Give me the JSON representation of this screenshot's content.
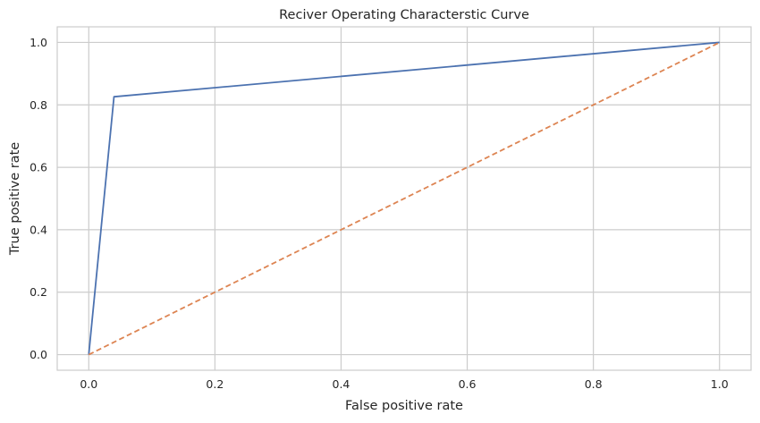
{
  "chart_data": {
    "type": "line",
    "title": "Reciver Operating Characterstic Curve",
    "xlabel": "False positive rate",
    "ylabel": "True positive rate",
    "xlim": [
      -0.05,
      1.05
    ],
    "ylim": [
      -0.05,
      1.05
    ],
    "xticks": [
      0.0,
      0.2,
      0.4,
      0.6,
      0.8,
      1.0
    ],
    "yticks": [
      0.0,
      0.2,
      0.4,
      0.6,
      0.8,
      1.0
    ],
    "xtick_labels": [
      "0.0",
      "0.2",
      "0.4",
      "0.6",
      "0.8",
      "1.0"
    ],
    "ytick_labels": [
      "0.0",
      "0.2",
      "0.4",
      "0.6",
      "0.8",
      "1.0"
    ],
    "grid": true,
    "series": [
      {
        "x": [
          0.0,
          0.04,
          1.0
        ],
        "y": [
          0.0,
          0.826,
          1.0
        ],
        "color": "#4c72b0",
        "style": "solid"
      },
      {
        "x": [
          0.0,
          1.0
        ],
        "y": [
          0.0,
          1.0
        ],
        "color": "#dd8452",
        "style": "dashed"
      }
    ]
  }
}
